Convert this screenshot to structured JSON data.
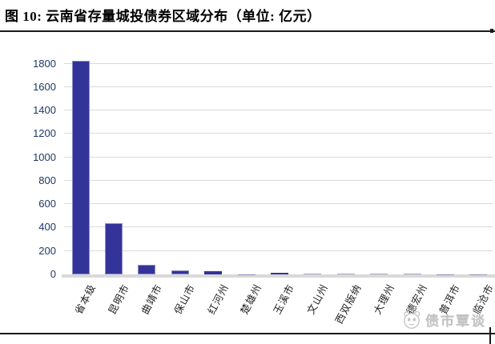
{
  "figure": {
    "title": "图 10:  云南省存量城投债券区域分布（单位:  亿元）"
  },
  "chart_data": {
    "type": "bar",
    "title": "云南省存量城投债券区域分布",
    "unit": "亿元",
    "categories": [
      "省本级",
      "昆明市",
      "曲靖市",
      "保山市",
      "红河州",
      "楚雄州",
      "玉溪市",
      "文山州",
      "西双版纳",
      "大理州",
      "德宏州",
      "普洱市",
      "临沧市"
    ],
    "values": [
      1822,
      440,
      80,
      34,
      25,
      2,
      14,
      6,
      5,
      5,
      4,
      1,
      1
    ],
    "xlabel": "",
    "ylabel": "",
    "yticks": [
      0,
      200,
      400,
      600,
      800,
      1000,
      1200,
      1400,
      1600,
      1800
    ],
    "ylim": [
      0,
      1920
    ],
    "grid": true,
    "legend": false,
    "bar_color": "#333399",
    "bar_edge_color": "#8b8fc6",
    "gridline_color": "#d9d9d9",
    "baseline_color": "#d9d9d9",
    "ytick_color": "#1f3864",
    "xtick_color": "#222222"
  },
  "watermark": {
    "text": "债市覃谈",
    "icon": "panda-logo"
  }
}
